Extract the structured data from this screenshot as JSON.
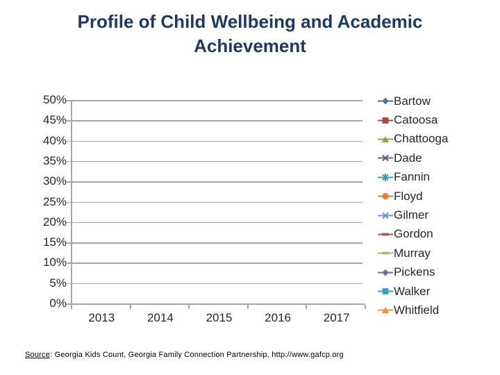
{
  "title": {
    "line1": "Profile of Child Wellbeing and Academic",
    "line2": "Achievement"
  },
  "source": {
    "label": "Source",
    "text": ": Georgia Kids Count, Georgia Family Connection Partnership, http://www.gafcp.org"
  },
  "colors": {
    "title_text": "#1F3864",
    "axis_text": "#262626",
    "grid_and_axis": "#A6A6A6",
    "background": "#FFFFFF"
  },
  "chart_data": {
    "type": "line",
    "title": "Profile of Child Wellbeing and Academic Achievement",
    "categories": [
      "2013",
      "2014",
      "2015",
      "2016",
      "2017"
    ],
    "y_ticks": [
      "50%",
      "45%",
      "40%",
      "35%",
      "30%",
      "25%",
      "20%",
      "15%",
      "10%",
      "5%",
      "0%"
    ],
    "ylim": [
      0,
      50
    ],
    "y_unit": "%",
    "grid": "horizontal-only",
    "legend_position": "right",
    "plot_area_empty": true,
    "series": [
      {
        "name": "Bartow",
        "color": "#4572A7",
        "marker": "diamond",
        "values": []
      },
      {
        "name": "Catoosa",
        "color": "#AA4643",
        "marker": "square",
        "values": []
      },
      {
        "name": "Chattooga",
        "color": "#89A54E",
        "marker": "triangle",
        "values": []
      },
      {
        "name": "Dade",
        "color": "#71588F",
        "marker": "x",
        "values": []
      },
      {
        "name": "Fannin",
        "color": "#4198AF",
        "marker": "asterisk",
        "values": []
      },
      {
        "name": "Floyd",
        "color": "#DB843D",
        "marker": "circle",
        "values": []
      },
      {
        "name": "Gilmer",
        "color": "#6E93CE",
        "marker": "x",
        "values": []
      },
      {
        "name": "Gordon",
        "color": "#B2544C",
        "marker": "dash",
        "values": []
      },
      {
        "name": "Murray",
        "color": "#A9BE6F",
        "marker": "dash",
        "values": []
      },
      {
        "name": "Pickens",
        "color": "#7661A2",
        "marker": "diamond",
        "values": []
      },
      {
        "name": "Walker",
        "color": "#35A1C3",
        "marker": "square",
        "values": []
      },
      {
        "name": "Whitfield",
        "color": "#F2923F",
        "marker": "triangle",
        "values": []
      }
    ]
  }
}
